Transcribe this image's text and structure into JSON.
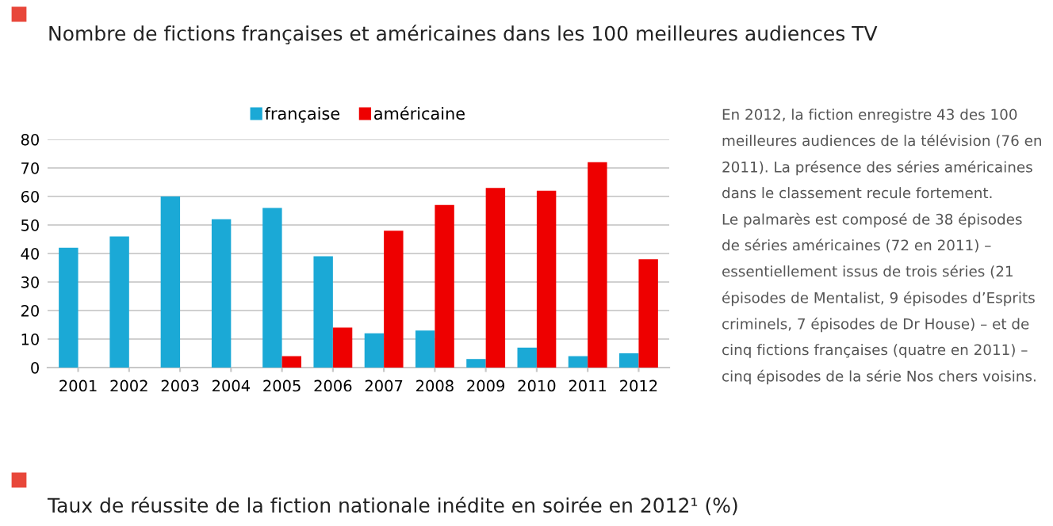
{
  "chart_data": {
    "type": "bar",
    "title": "Nombre de fictions françaises et américaines dans les 100 meilleures audiences TV",
    "categories": [
      "2001",
      "2002",
      "2003",
      "2004",
      "2005",
      "2006",
      "2007",
      "2008",
      "2009",
      "2010",
      "2011",
      "2012"
    ],
    "series": [
      {
        "name": "française",
        "color": "#1ba9d6",
        "values": [
          42,
          46,
          60,
          52,
          56,
          39,
          12,
          13,
          3,
          7,
          4,
          5
        ]
      },
      {
        "name": "américaine",
        "color": "#ee0000",
        "values": [
          null,
          null,
          null,
          null,
          4,
          14,
          48,
          57,
          63,
          62,
          72,
          38
        ]
      }
    ],
    "ylim": [
      0,
      80
    ],
    "yticks": [
      0,
      10,
      20,
      30,
      40,
      50,
      60,
      70,
      80
    ],
    "grid": "y",
    "legend": "top",
    "annotations": [
      "En 2012, la fiction enregistre 43 des 100",
      "meilleures audiences de la télévision (76 en",
      "2011). La présence des séries américaines",
      "dans le classement recule fortement.",
      "Le palmarès est composé de 38 épisodes",
      "de séries américaines (72 en 2011) –",
      "essentiellement issus de trois séries (21",
      "épisodes de Mentalist, 9 épisodes d’Esprits",
      "criminels, 7 épisodes de Dr House) – et de",
      "cinq fictions françaises (quatre en 2011) –",
      "cinq épisodes de la série Nos chers voisins.",
      "Taux de réussite de la fiction nationale inédite en soirée en 2012¹ (%)"
    ]
  }
}
